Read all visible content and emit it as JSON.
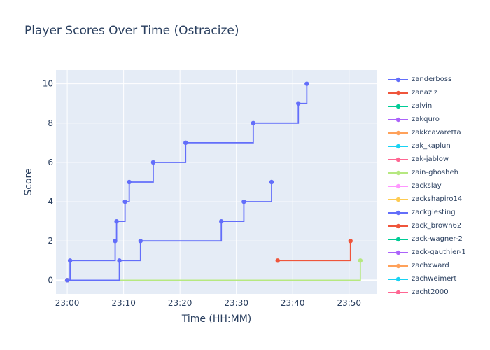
{
  "chart_data": {
    "type": "line",
    "line_shape": "step",
    "title": "Player Scores Over Time (Ostracize)",
    "xlabel": "Time (HH:MM)",
    "ylabel": "Score",
    "xlim": [
      "22:58",
      "23:55"
    ],
    "ylim": [
      -0.7,
      10.7
    ],
    "x_ticks": [
      "23:00",
      "23:10",
      "23:20",
      "23:30",
      "23:40",
      "23:50"
    ],
    "y_ticks": [
      0,
      2,
      4,
      6,
      8,
      10
    ],
    "grid": true,
    "legend_position": "right",
    "series": [
      {
        "name": "zanderboss",
        "color": "#636efa",
        "x": [
          "23:00",
          "23:00:30",
          "23:08:30",
          "23:08:45",
          "23:10:15",
          "23:11:00",
          "23:15:15",
          "23:21:00",
          "23:33:00",
          "23:41:00",
          "23:42:30"
        ],
        "y": [
          0,
          1,
          2,
          3,
          4,
          5,
          6,
          7,
          8,
          9,
          10
        ]
      },
      {
        "name": "zanaziz",
        "color": "#ef553b",
        "x": [
          "23:37:20",
          "23:50:15"
        ],
        "y": [
          1,
          2
        ]
      },
      {
        "name": "zalvin",
        "color": "#00cc96",
        "x": [
          "23:00"
        ],
        "y": [
          0
        ]
      },
      {
        "name": "zakquro",
        "color": "#ab63fa",
        "x": [
          "23:00"
        ],
        "y": [
          0
        ]
      },
      {
        "name": "zakkcavaretta",
        "color": "#ffa15a",
        "x": [
          "23:00"
        ],
        "y": [
          0
        ]
      },
      {
        "name": "zak_kaplun",
        "color": "#19d3f3",
        "x": [
          "23:00"
        ],
        "y": [
          0
        ]
      },
      {
        "name": "zak-jablow",
        "color": "#ff6692",
        "x": [
          "23:00"
        ],
        "y": [
          0
        ]
      },
      {
        "name": "zain-ghosheh",
        "color": "#b6e880",
        "x": [
          "23:00",
          "23:52:00"
        ],
        "y": [
          0,
          1
        ]
      },
      {
        "name": "zackslay",
        "color": "#ff97ff",
        "x": [
          "23:00"
        ],
        "y": [
          0
        ]
      },
      {
        "name": "zackshapiro14",
        "color": "#fecb52",
        "x": [
          "23:00"
        ],
        "y": [
          0
        ]
      },
      {
        "name": "zackgiesting",
        "color": "#636efa",
        "x": [
          "23:00",
          "23:09:15",
          "23:13:00",
          "23:27:20",
          "23:31:20",
          "23:36:15"
        ],
        "y": [
          0,
          1,
          2,
          3,
          4,
          5
        ]
      },
      {
        "name": "zack_brown62",
        "color": "#ef553b",
        "x": [],
        "y": []
      },
      {
        "name": "zack-wagner-2",
        "color": "#00cc96",
        "x": [],
        "y": []
      },
      {
        "name": "zack-gauthier-1",
        "color": "#ab63fa",
        "x": [],
        "y": []
      },
      {
        "name": "zachxward",
        "color": "#ffa15a",
        "x": [],
        "y": []
      },
      {
        "name": "zachweimert",
        "color": "#19d3f3",
        "x": [],
        "y": []
      },
      {
        "name": "zacht2000",
        "color": "#ff6692",
        "x": [],
        "y": []
      }
    ]
  }
}
